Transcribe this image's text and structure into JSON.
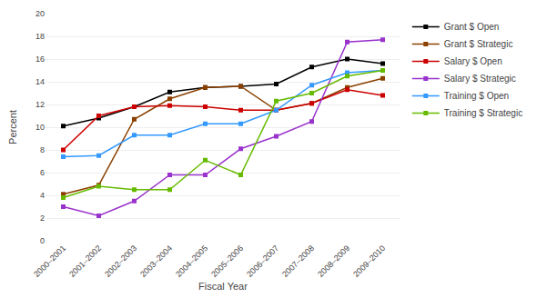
{
  "chart_data": {
    "type": "line",
    "xlabel": "Fiscal Year",
    "ylabel": "Percent",
    "categories": [
      "2000–2001",
      "2001–2002",
      "2002–2003",
      "2003–2004",
      "2004–2005",
      "2005–2006",
      "2006–2007",
      "2007–2008",
      "2008–2009",
      "2009–2010"
    ],
    "series": [
      {
        "name": "Grant $ Open",
        "color": "#000000",
        "values": [
          10.1,
          10.8,
          11.8,
          13.1,
          13.5,
          13.6,
          13.8,
          15.3,
          16.0,
          15.6
        ]
      },
      {
        "name": "Grant $ Strategic",
        "color": "#8B4000",
        "values": [
          4.1,
          4.9,
          10.7,
          12.5,
          13.5,
          13.6,
          11.5,
          12.1,
          13.5,
          14.3
        ]
      },
      {
        "name": "Salary $ Open",
        "color": "#CC0000",
        "values": [
          8.0,
          11.0,
          11.8,
          11.9,
          11.8,
          11.5,
          11.5,
          12.1,
          13.3,
          12.8
        ]
      },
      {
        "name": "Salary $ Strategic",
        "color": "#9933CC",
        "values": [
          3.0,
          2.2,
          3.5,
          5.8,
          5.8,
          8.1,
          9.2,
          10.5,
          17.5,
          17.7
        ]
      },
      {
        "name": "Training $ Open",
        "color": "#3399FF",
        "values": [
          7.4,
          7.5,
          9.3,
          9.3,
          10.3,
          10.3,
          11.5,
          13.7,
          14.8,
          15.0
        ]
      },
      {
        "name": "Training $ Strategic",
        "color": "#66BB00",
        "values": [
          3.8,
          4.8,
          4.5,
          4.5,
          7.1,
          5.8,
          12.3,
          13.0,
          14.5,
          15.0
        ]
      }
    ],
    "marker": "square",
    "ylim": [
      0,
      20
    ],
    "yticks": [
      0,
      2,
      4,
      6,
      8,
      10,
      12,
      14,
      16,
      18,
      20
    ],
    "grid": true,
    "legend": "right"
  }
}
